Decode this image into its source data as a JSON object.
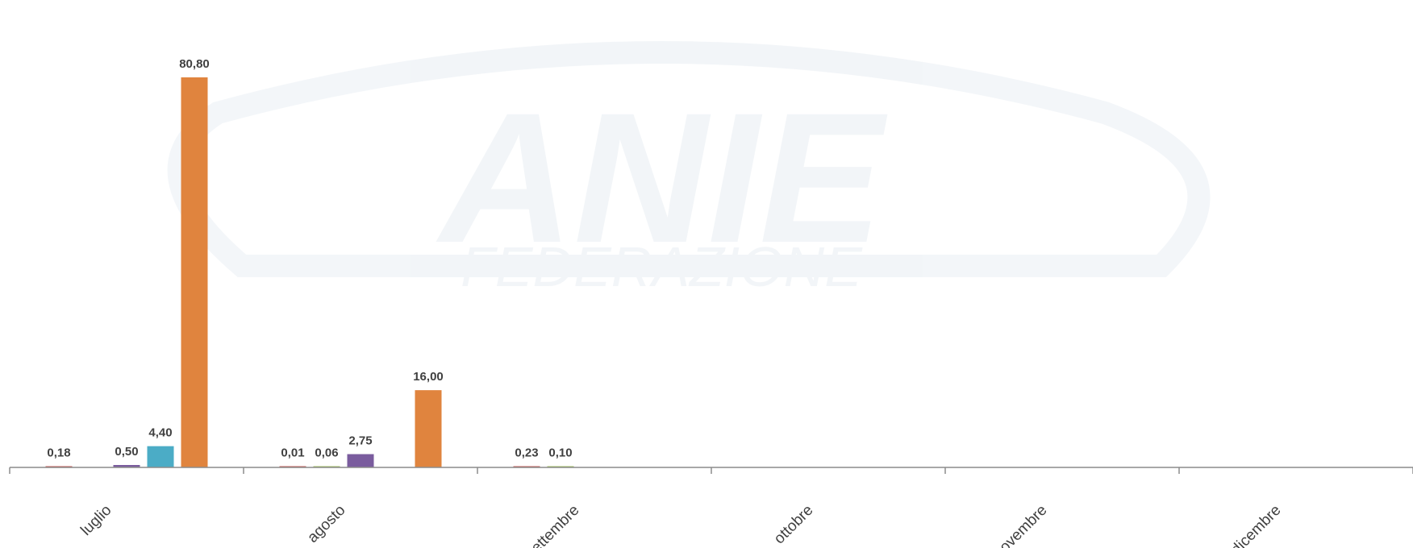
{
  "chart_data": {
    "type": "bar",
    "categories": [
      "luglio",
      "agosto",
      "settembre",
      "ottobre",
      "novembre",
      "dicembre"
    ],
    "series": [
      {
        "color": "#c0504d",
        "values": [
          0.18,
          0.01,
          0.23,
          null,
          null,
          null
        ]
      },
      {
        "color": "#9bbb59",
        "values": [
          null,
          0.06,
          0.1,
          null,
          null,
          null
        ]
      },
      {
        "color": "#7a5c9e",
        "values": [
          0.5,
          2.75,
          null,
          null,
          null,
          null
        ]
      },
      {
        "color": "#4bacc6",
        "values": [
          4.4,
          null,
          null,
          null,
          null,
          null
        ]
      },
      {
        "color": "#e0843e",
        "values": [
          80.8,
          16.0,
          null,
          null,
          null,
          null
        ]
      }
    ],
    "data_labels": [
      [
        "0,18",
        "0,01",
        "0,23",
        "",
        "",
        ""
      ],
      [
        "",
        "0,06",
        "0,10",
        "",
        "",
        ""
      ],
      [
        "0,50",
        "2,75",
        "",
        "",
        "",
        ""
      ],
      [
        "4,40",
        "",
        "",
        "",
        "",
        ""
      ],
      [
        "80,80",
        "16,00",
        "",
        "",
        "",
        ""
      ]
    ],
    "ylim": [
      0,
      85
    ],
    "grid": false,
    "legend": "none",
    "watermark": {
      "text": "ANIE",
      "subtext": "FEDERAZIONE",
      "color": "#5b7fa6"
    }
  }
}
